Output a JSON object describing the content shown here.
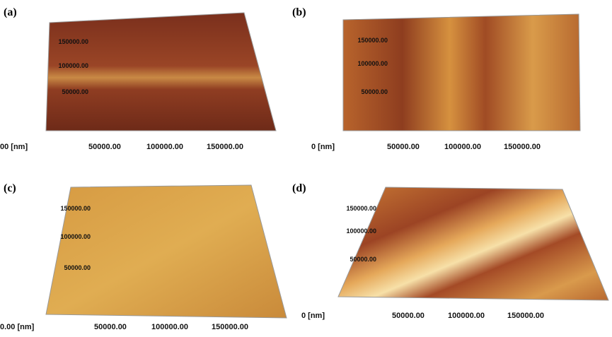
{
  "panels": [
    {
      "label": "(a)",
      "y_labels": [
        "150000.00",
        "100000.00",
        "50000.00"
      ],
      "x_labels": [
        "00 [nm]",
        "50000.00",
        "100000.00",
        "150000.00"
      ]
    },
    {
      "label": "(b)",
      "y_labels": [
        "150000.00",
        "100000.00",
        "50000.00"
      ],
      "x_labels": [
        "0 [nm]",
        "50000.00",
        "100000.00",
        "150000.00"
      ]
    },
    {
      "label": "(c)",
      "y_labels": [
        "150000.00",
        "100000.00",
        "50000.00"
      ],
      "x_labels": [
        "0.00 [nm]",
        "50000.00",
        "100000.00",
        "150000.00"
      ]
    },
    {
      "label": "(d)",
      "y_labels": [
        "150000.00",
        "100000.00",
        "50000.00"
      ],
      "x_labels": [
        "0 [nm]",
        "50000.00",
        "100000.00",
        "150000.00"
      ]
    }
  ]
}
